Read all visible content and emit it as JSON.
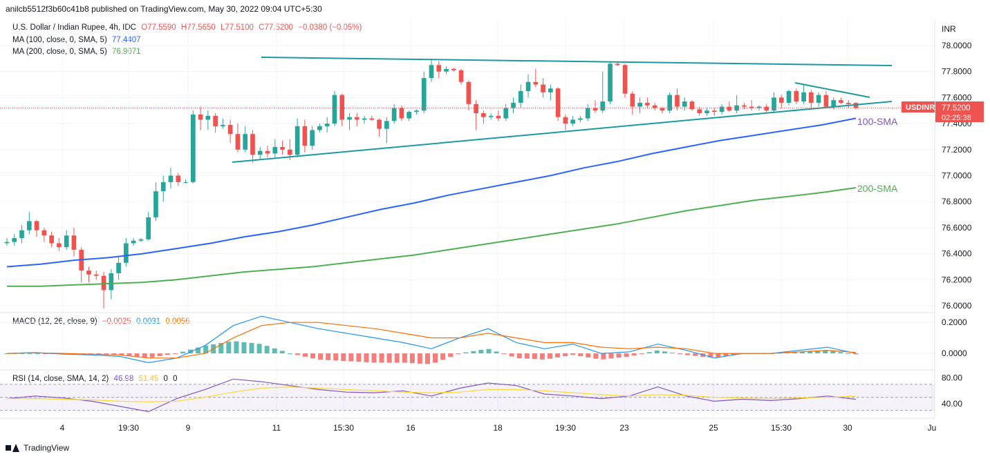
{
  "header": {
    "published": "anilcb5512f3b60c41b8 published on TradingView.com, May 30, 2022 09:04 UTC+5:30"
  },
  "legend": {
    "symbol": "U.S. Dollar / Indian Rupee, 4h, IDC",
    "o": "O77.5590",
    "h": "H77.5650",
    "l": "L77.5100",
    "c": "C77.5200",
    "chg": "−0.0380 (−0.05%)",
    "ma100_label": "MA (100, close, 0, SMA, 5)",
    "ma100_value": "77.4407",
    "ma200_label": "MA (200, close, 0, SMA, 5)",
    "ma200_value": "76.9071",
    "macd_label": "MACD (12, 26, close, 9)",
    "macd_hist": "−0.0025",
    "macd_line": "0.0031",
    "macd_signal": "0.0056",
    "rsi_label": "RSI (14, close, SMA, 14, 2)",
    "rsi_value": "46.98",
    "rsi_ma": "51.45",
    "rsi_extra1": "0",
    "rsi_extra2": "0"
  },
  "axis": {
    "currency": "INR",
    "price_badge_symbol": "USDINR",
    "price_badge_value": "77.5200",
    "price_badge_timer": "02:25:38",
    "price_ticks": [
      "78.0000",
      "77.8000",
      "77.6000",
      "77.4000",
      "77.2000",
      "77.0000",
      "76.8000",
      "76.6000",
      "76.4000",
      "76.2000",
      "76.0000"
    ],
    "macd_ticks": [
      "0.2000",
      "0.0000"
    ],
    "rsi_ticks": [
      "80.00",
      "40.00"
    ],
    "time_ticks": [
      "4",
      "19:30",
      "9",
      "11",
      "15:30",
      "16",
      "18",
      "19:30",
      "23",
      "25",
      "15:30",
      "30",
      "Ju"
    ]
  },
  "annotations": {
    "sma100": "100-SMA",
    "sma200": "200-SMA"
  },
  "colors": {
    "up": "#26a69a",
    "down": "#ef5350",
    "ma100": "#2962ff",
    "ma200": "#4caf50",
    "trend": "#1a9aa0",
    "macd": "#2196f3",
    "signal": "#ff6d00",
    "rsi": "#7e57c2",
    "rsi_ma": "#fdd835"
  },
  "footer": {
    "brand": "TradingView"
  },
  "chart_data": {
    "type": "candlestick",
    "title": "U.S. Dollar / Indian Rupee, 4h, IDC",
    "timeframe": "4h",
    "ylim": [
      75.95,
      78.1
    ],
    "last_price": 77.52,
    "ohlc": [
      [
        76.48,
        76.52,
        76.46,
        76.49
      ],
      [
        76.49,
        76.55,
        76.46,
        76.52
      ],
      [
        76.52,
        76.62,
        76.48,
        76.58
      ],
      [
        76.58,
        76.72,
        76.55,
        76.65
      ],
      [
        76.65,
        76.66,
        76.53,
        76.58
      ],
      [
        76.58,
        76.6,
        76.49,
        76.54
      ],
      [
        76.54,
        76.57,
        76.45,
        76.48
      ],
      [
        76.48,
        76.52,
        76.42,
        76.45
      ],
      [
        76.45,
        76.58,
        76.43,
        76.54
      ],
      [
        76.54,
        76.6,
        76.38,
        76.43
      ],
      [
        76.43,
        76.45,
        76.18,
        76.27
      ],
      [
        76.27,
        76.3,
        76.18,
        76.24
      ],
      [
        76.24,
        76.27,
        76.2,
        76.23
      ],
      [
        76.23,
        76.26,
        75.98,
        76.12
      ],
      [
        76.12,
        76.28,
        76.05,
        76.25
      ],
      [
        76.25,
        76.38,
        76.2,
        76.33
      ],
      [
        76.33,
        76.52,
        76.3,
        76.48
      ],
      [
        76.48,
        76.52,
        76.46,
        76.5
      ],
      [
        76.5,
        76.52,
        76.49,
        76.51
      ],
      [
        76.51,
        76.72,
        76.5,
        76.68
      ],
      [
        76.68,
        76.95,
        76.65,
        76.88
      ],
      [
        76.88,
        77.0,
        76.8,
        76.95
      ],
      [
        76.95,
        77.06,
        76.9,
        77.0
      ],
      [
        77.0,
        77.02,
        76.92,
        76.95
      ],
      [
        76.95,
        76.97,
        76.94,
        76.95
      ],
      [
        76.95,
        77.5,
        76.94,
        77.47
      ],
      [
        77.47,
        77.53,
        77.35,
        77.43
      ],
      [
        77.43,
        77.5,
        77.35,
        77.46
      ],
      [
        77.46,
        77.48,
        77.33,
        77.38
      ],
      [
        77.38,
        77.44,
        77.36,
        77.39
      ],
      [
        77.39,
        77.43,
        77.25,
        77.32
      ],
      [
        77.32,
        77.4,
        77.18,
        77.2
      ],
      [
        77.2,
        77.38,
        77.18,
        77.32
      ],
      [
        77.32,
        77.35,
        77.1,
        77.16
      ],
      [
        77.16,
        77.22,
        77.12,
        77.19
      ],
      [
        77.19,
        77.23,
        77.14,
        77.17
      ],
      [
        77.17,
        77.28,
        77.14,
        77.22
      ],
      [
        77.22,
        77.27,
        77.16,
        77.2
      ],
      [
        77.2,
        77.28,
        77.12,
        77.16
      ],
      [
        77.16,
        77.44,
        77.14,
        77.38
      ],
      [
        77.38,
        77.43,
        77.18,
        77.23
      ],
      [
        77.23,
        77.38,
        77.2,
        77.35
      ],
      [
        77.35,
        77.4,
        77.33,
        77.38
      ],
      [
        77.38,
        77.45,
        77.33,
        77.4
      ],
      [
        77.4,
        77.65,
        77.38,
        77.62
      ],
      [
        77.62,
        77.63,
        77.38,
        77.43
      ],
      [
        77.43,
        77.48,
        77.35,
        77.45
      ],
      [
        77.45,
        77.48,
        77.38,
        77.43
      ],
      [
        77.43,
        77.46,
        77.4,
        77.44
      ],
      [
        77.44,
        77.46,
        77.42,
        77.43
      ],
      [
        77.43,
        77.44,
        77.3,
        77.36
      ],
      [
        77.36,
        77.45,
        77.25,
        77.42
      ],
      [
        77.42,
        77.55,
        77.4,
        77.52
      ],
      [
        77.52,
        77.54,
        77.42,
        77.44
      ],
      [
        77.44,
        77.5,
        77.42,
        77.49
      ],
      [
        77.49,
        77.51,
        77.47,
        77.5
      ],
      [
        77.5,
        77.8,
        77.48,
        77.75
      ],
      [
        77.75,
        77.9,
        77.72,
        77.85
      ],
      [
        77.85,
        77.88,
        77.75,
        77.8
      ],
      [
        77.8,
        77.84,
        77.78,
        77.82
      ],
      [
        77.82,
        77.83,
        77.8,
        77.81
      ],
      [
        77.81,
        77.82,
        77.7,
        77.72
      ],
      [
        77.72,
        77.73,
        77.5,
        77.55
      ],
      [
        77.55,
        77.58,
        77.35,
        77.48
      ],
      [
        77.48,
        77.5,
        77.4,
        77.45
      ],
      [
        77.45,
        77.48,
        77.43,
        77.46
      ],
      [
        77.46,
        77.5,
        77.42,
        77.44
      ],
      [
        77.44,
        77.55,
        77.42,
        77.52
      ],
      [
        77.52,
        77.6,
        77.48,
        77.56
      ],
      [
        77.56,
        77.7,
        77.52,
        77.65
      ],
      [
        77.65,
        77.78,
        77.6,
        77.72
      ],
      [
        77.72,
        77.82,
        77.68,
        77.7
      ],
      [
        77.7,
        77.75,
        77.6,
        77.64
      ],
      [
        77.64,
        77.7,
        77.58,
        77.67
      ],
      [
        77.67,
        77.68,
        77.42,
        77.45
      ],
      [
        77.45,
        77.47,
        77.35,
        77.4
      ],
      [
        77.4,
        77.46,
        77.38,
        77.43
      ],
      [
        77.43,
        77.46,
        77.41,
        77.44
      ],
      [
        77.44,
        77.55,
        77.42,
        77.52
      ],
      [
        77.52,
        77.58,
        77.48,
        77.5
      ],
      [
        77.5,
        77.8,
        77.48,
        77.57
      ],
      [
        77.57,
        77.88,
        77.55,
        77.86
      ],
      [
        77.86,
        77.87,
        77.84,
        77.85
      ],
      [
        77.85,
        77.86,
        77.6,
        77.63
      ],
      [
        77.63,
        77.65,
        77.47,
        77.53
      ],
      [
        77.53,
        77.6,
        77.48,
        77.56
      ],
      [
        77.56,
        77.6,
        77.52,
        77.54
      ],
      [
        77.54,
        77.56,
        77.5,
        77.52
      ],
      [
        77.52,
        77.53,
        77.48,
        77.5
      ],
      [
        77.5,
        77.64,
        77.48,
        77.62
      ],
      [
        77.62,
        77.67,
        77.5,
        77.53
      ],
      [
        77.53,
        77.6,
        77.5,
        77.57
      ],
      [
        77.57,
        77.58,
        77.5,
        77.51
      ],
      [
        77.51,
        77.53,
        77.46,
        77.48
      ],
      [
        77.48,
        77.52,
        77.46,
        77.5
      ],
      [
        77.5,
        77.52,
        77.46,
        77.49
      ],
      [
        77.49,
        77.55,
        77.47,
        77.53
      ],
      [
        77.53,
        77.57,
        77.49,
        77.5
      ],
      [
        77.5,
        77.62,
        77.48,
        77.54
      ],
      [
        77.54,
        77.56,
        77.51,
        77.53
      ],
      [
        77.53,
        77.58,
        77.5,
        77.52
      ],
      [
        77.52,
        77.54,
        77.5,
        77.53
      ],
      [
        77.53,
        77.55,
        77.48,
        77.5
      ],
      [
        77.5,
        77.64,
        77.48,
        77.6
      ],
      [
        77.6,
        77.62,
        77.52,
        77.56
      ],
      [
        77.56,
        77.66,
        77.54,
        77.65
      ],
      [
        77.65,
        77.67,
        77.55,
        77.57
      ],
      [
        77.57,
        77.7,
        77.55,
        77.64
      ],
      [
        77.64,
        77.66,
        77.52,
        77.56
      ],
      [
        77.56,
        77.64,
        77.53,
        77.62
      ],
      [
        77.62,
        77.65,
        77.52,
        77.53
      ],
      [
        77.53,
        77.6,
        77.51,
        77.58
      ],
      [
        77.58,
        77.6,
        77.55,
        77.56
      ],
      [
        77.56,
        77.58,
        77.52,
        77.55
      ],
      [
        77.559,
        77.565,
        77.51,
        77.52
      ]
    ],
    "ma100": [
      76.3,
      76.32,
      76.35,
      76.37,
      76.4,
      76.44,
      76.48,
      76.53,
      76.57,
      76.62,
      76.68,
      76.74,
      76.79,
      76.85,
      76.9,
      76.95,
      77.0,
      77.06,
      77.11,
      77.17,
      77.22,
      77.27,
      77.31,
      77.35,
      77.39,
      77.4407
    ],
    "ma200": [
      76.15,
      76.15,
      76.16,
      76.17,
      76.18,
      76.2,
      76.23,
      76.26,
      76.28,
      76.3,
      76.33,
      76.36,
      76.39,
      76.43,
      76.47,
      76.51,
      76.55,
      76.59,
      76.63,
      76.68,
      76.73,
      76.77,
      76.81,
      76.84,
      76.87,
      76.9071
    ],
    "macd": {
      "ylim": [
        -0.08,
        0.25
      ],
      "line": [
        0.0,
        0.005,
        -0.005,
        -0.01,
        -0.02,
        -0.06,
        -0.03,
        0.05,
        0.18,
        0.24,
        0.2,
        0.16,
        0.13,
        0.1,
        0.07,
        0.03,
        0.1,
        0.16,
        0.07,
        0.03,
        0.06,
        0.0,
        0.01,
        0.06,
        0.02,
        -0.03,
        0.0,
        0.0,
        0.02,
        0.04,
        0.0
      ],
      "signal": [
        0.0,
        0.004,
        0.0,
        -0.005,
        -0.01,
        -0.03,
        -0.03,
        0.0,
        0.1,
        0.18,
        0.2,
        0.2,
        0.18,
        0.16,
        0.13,
        0.1,
        0.1,
        0.13,
        0.1,
        0.07,
        0.07,
        0.04,
        0.03,
        0.04,
        0.03,
        0.0,
        0.0,
        0.0,
        0.01,
        0.02,
        0.0056
      ]
    },
    "rsi": {
      "ylim": [
        20,
        90
      ],
      "upper": 70,
      "lower": 30,
      "line": [
        48,
        52,
        49,
        44,
        36,
        28,
        48,
        62,
        78,
        74,
        68,
        62,
        58,
        57,
        60,
        52,
        64,
        72,
        68,
        55,
        52,
        48,
        52,
        66,
        52,
        44,
        47,
        45,
        48,
        52,
        46.98
      ],
      "ma": [
        48,
        48,
        47,
        46,
        44,
        43,
        44,
        50,
        58,
        64,
        66,
        64,
        62,
        60,
        58,
        57,
        58,
        62,
        62,
        60,
        57,
        54,
        52,
        54,
        53,
        50,
        49,
        48,
        49,
        50,
        51.45
      ]
    }
  }
}
